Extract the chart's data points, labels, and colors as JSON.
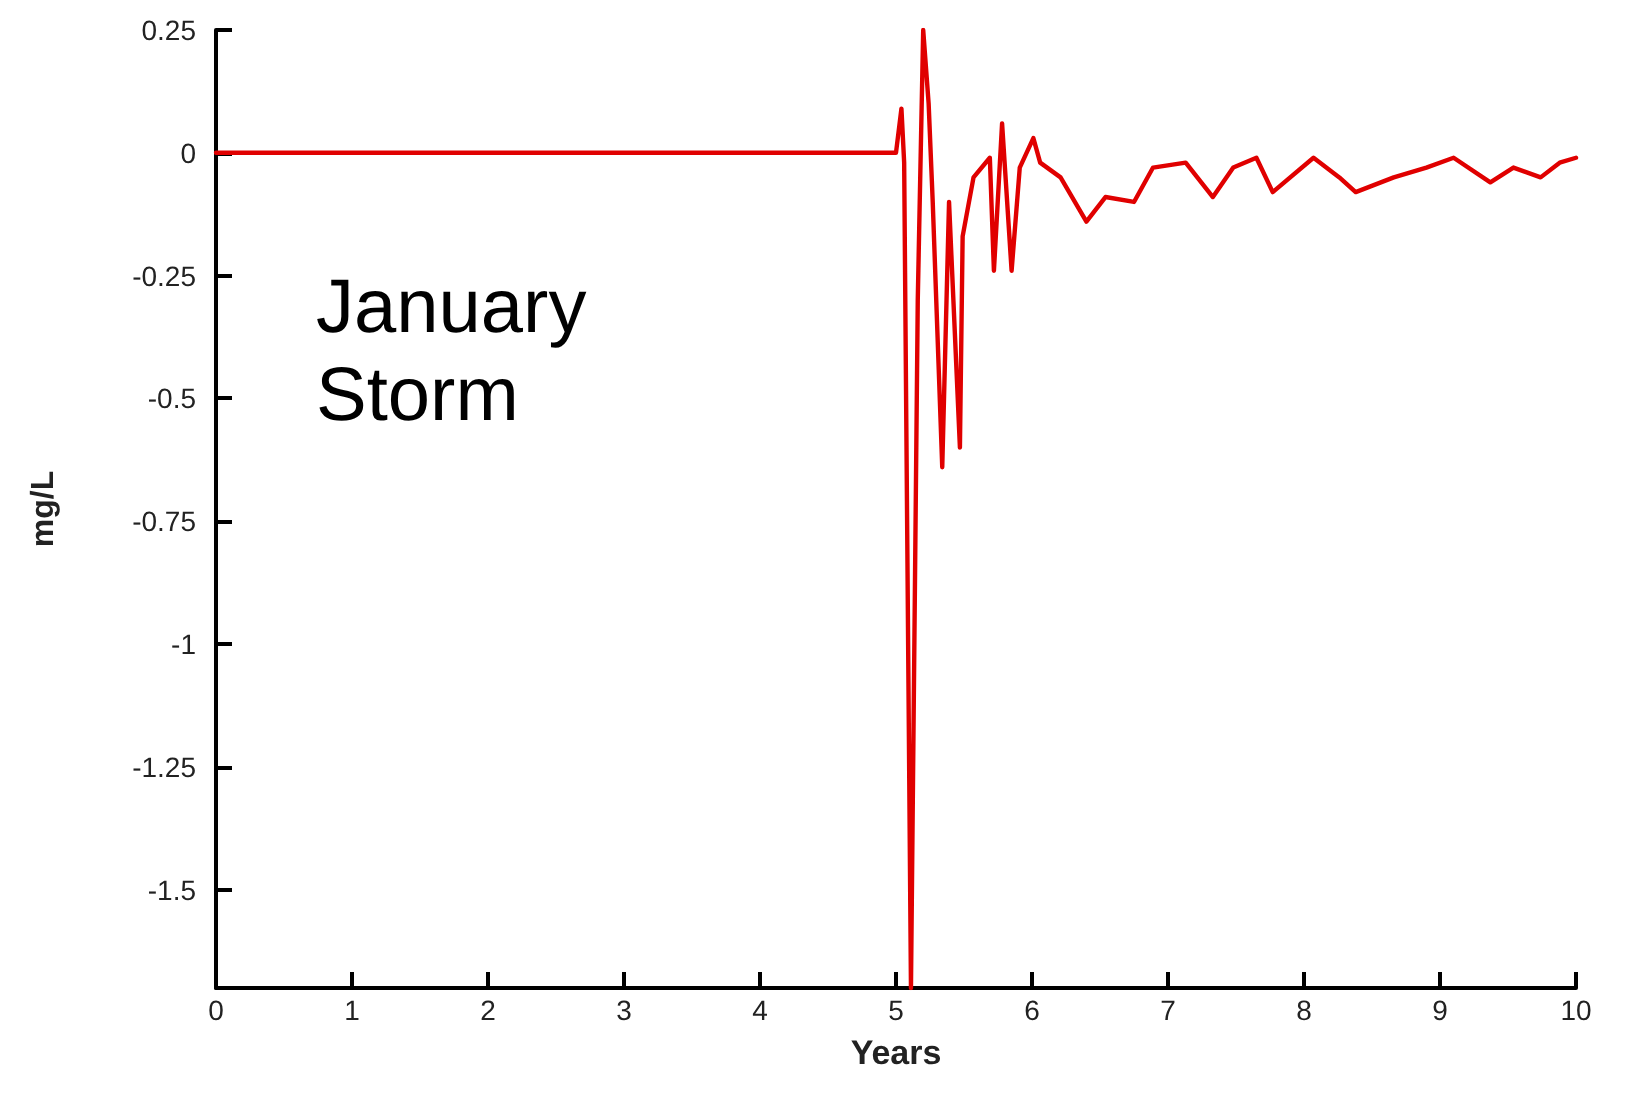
{
  "chart_data": {
    "type": "line",
    "xlabel": "Years",
    "ylabel": "mg/L",
    "annotations": [
      "January Storm"
    ],
    "x": [
      0,
      5.0,
      5.04,
      5.06,
      5.11,
      5.16,
      5.2,
      5.24,
      5.27,
      5.34,
      5.39,
      5.47,
      5.49,
      5.57,
      5.69,
      5.72,
      5.78,
      5.85,
      5.91,
      6.01,
      6.06,
      6.21,
      6.4,
      6.54,
      6.75,
      6.89,
      7.13,
      7.33,
      7.48,
      7.65,
      7.77,
      8.07,
      8.26,
      8.38,
      8.66,
      8.9,
      9.1,
      9.37,
      9.54,
      9.74,
      9.88,
      10
    ],
    "series": [
      {
        "color": "#e00000",
        "values": [
          0,
          0,
          0.09,
          -0.02,
          -1.7,
          -0.3,
          0.25,
          0.1,
          -0.1,
          -0.64,
          -0.1,
          -0.6,
          -0.17,
          -0.05,
          -0.01,
          -0.24,
          0.06,
          -0.24,
          -0.03,
          0.03,
          -0.02,
          -0.05,
          -0.14,
          -0.09,
          -0.1,
          -0.03,
          -0.02,
          -0.09,
          -0.03,
          -0.01,
          -0.08,
          -0.01,
          -0.05,
          -0.08,
          -0.05,
          -0.03,
          -0.01,
          -0.06,
          -0.03,
          -0.05,
          -0.02,
          -0.01
        ]
      }
    ],
    "xlim": [
      0,
      10
    ],
    "xticks": [
      0,
      1,
      2,
      3,
      4,
      5,
      6,
      7,
      8,
      9,
      10
    ],
    "ylim": [
      -1.7,
      0.25
    ],
    "yticks": [
      0.25,
      0,
      -0.25,
      -0.5,
      -0.75,
      -1,
      -1.25,
      -1.5
    ],
    "grid": false,
    "marker": "none",
    "line_style": "solid"
  }
}
